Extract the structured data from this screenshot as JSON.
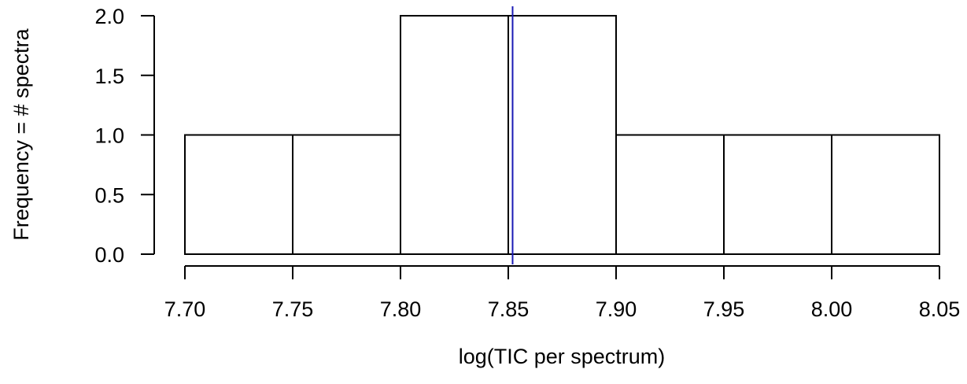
{
  "chart_data": {
    "type": "bar",
    "subtype": "histogram",
    "bins": [
      {
        "start": 7.7,
        "end": 7.75,
        "count": 1
      },
      {
        "start": 7.75,
        "end": 7.8,
        "count": 1
      },
      {
        "start": 7.8,
        "end": 7.85,
        "count": 2
      },
      {
        "start": 7.85,
        "end": 7.9,
        "count": 2
      },
      {
        "start": 7.9,
        "end": 7.95,
        "count": 1
      },
      {
        "start": 7.95,
        "end": 8.0,
        "count": 1
      },
      {
        "start": 8.0,
        "end": 8.05,
        "count": 1
      }
    ],
    "xlabel": "log(TIC per spectrum)",
    "ylabel": "Frequency = # spectra",
    "xlim": [
      7.7,
      8.05
    ],
    "ylim": [
      0,
      2.0
    ],
    "x_ticks": [
      7.7,
      7.75,
      7.8,
      7.85,
      7.9,
      7.95,
      8.0,
      8.05
    ],
    "x_tick_labels": [
      "7.70",
      "7.75",
      "7.80",
      "7.85",
      "7.90",
      "7.95",
      "8.00",
      "8.05"
    ],
    "y_ticks": [
      0,
      0.5,
      1.0,
      1.5,
      2.0
    ],
    "y_tick_labels": [
      "0.0",
      "0.5",
      "1.0",
      "1.5",
      "2.0"
    ],
    "reference_line": {
      "x": 7.852,
      "color": "#1a1ab5"
    },
    "bar_fill": "#ffffff",
    "bar_stroke": "#000000",
    "grid": false,
    "legend": "none"
  }
}
